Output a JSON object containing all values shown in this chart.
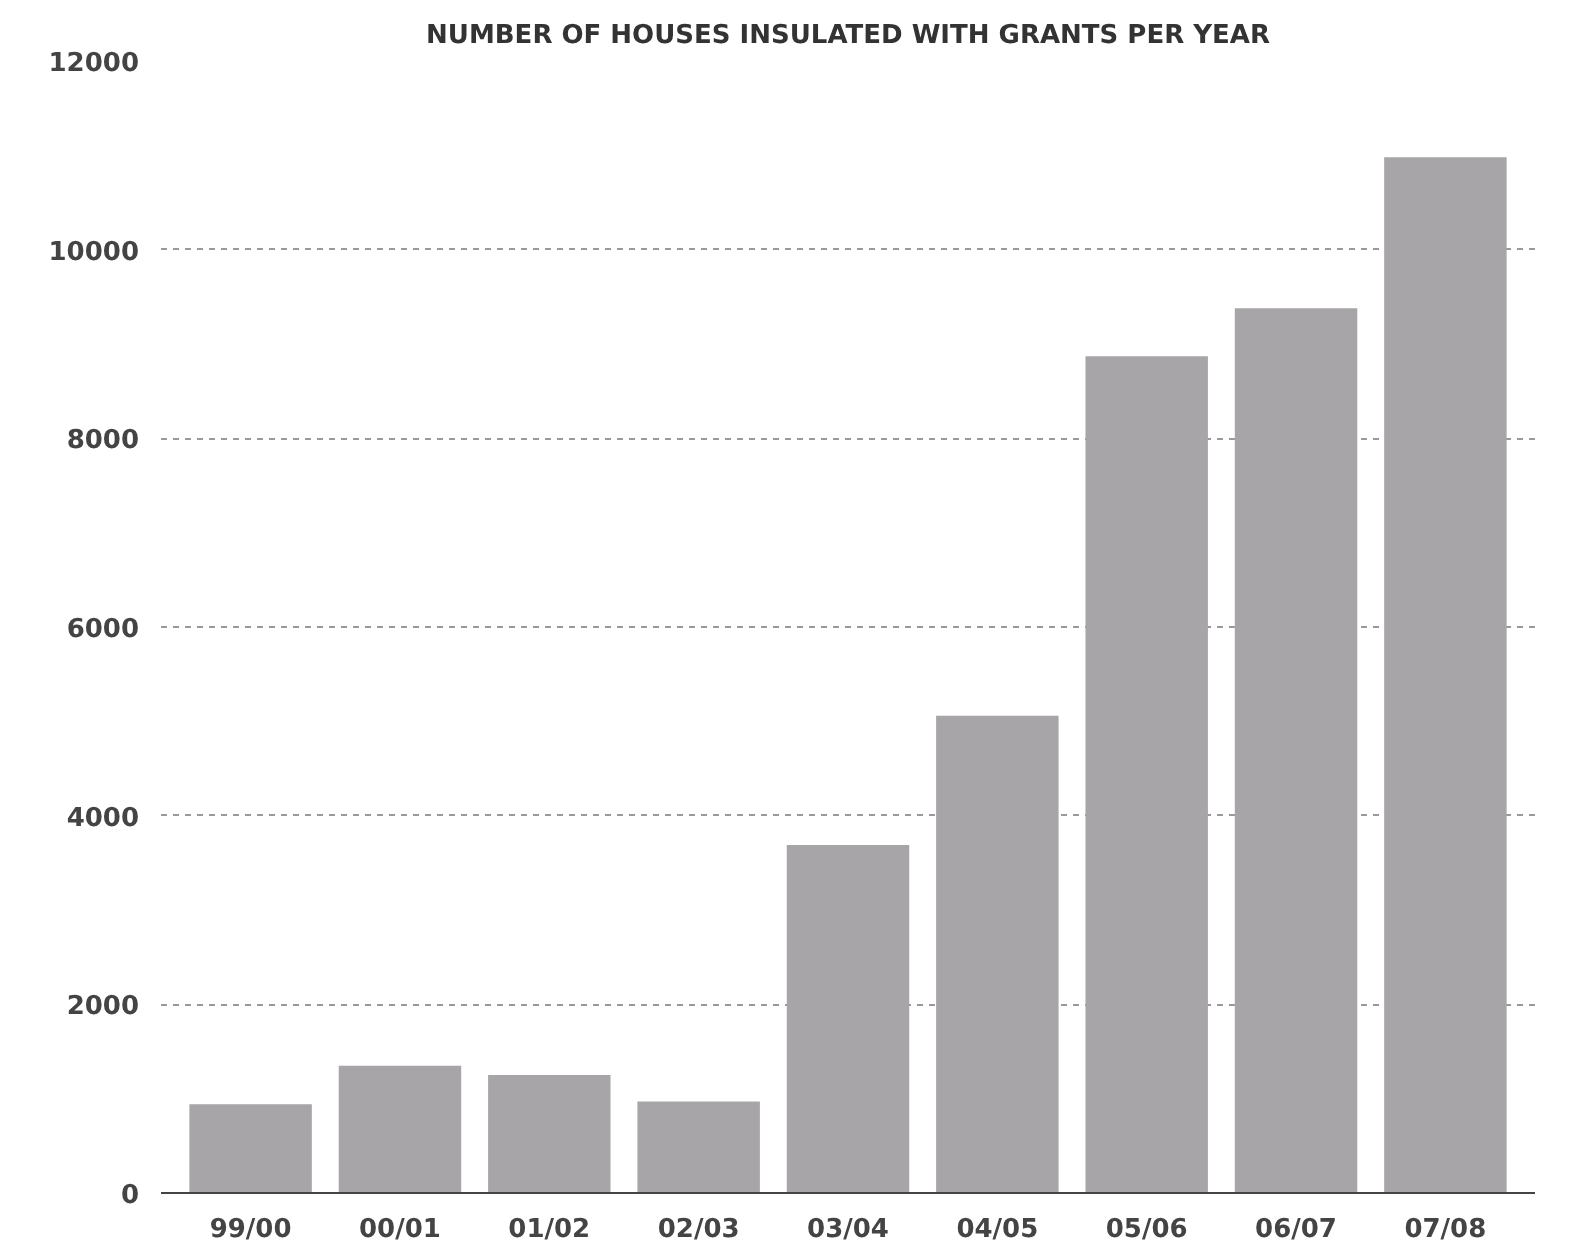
{
  "chart_data": {
    "type": "bar",
    "title": "NUMBER OF HOUSES INSULATED WITH GRANTS PER YEAR",
    "categories": [
      "99/00",
      "00/01",
      "01/02",
      "02/03",
      "03/04",
      "04/05",
      "05/06",
      "06/07",
      "07/08"
    ],
    "values": [
      940,
      1350,
      1250,
      970,
      3690,
      5060,
      8870,
      9380,
      10980
    ],
    "color": "#a8a5a9",
    "ylim": [
      0,
      12000
    ],
    "yticks": [
      0,
      2000,
      4000,
      6000,
      8000,
      10000,
      12000
    ],
    "grid": "y",
    "line_style": "dashed"
  }
}
